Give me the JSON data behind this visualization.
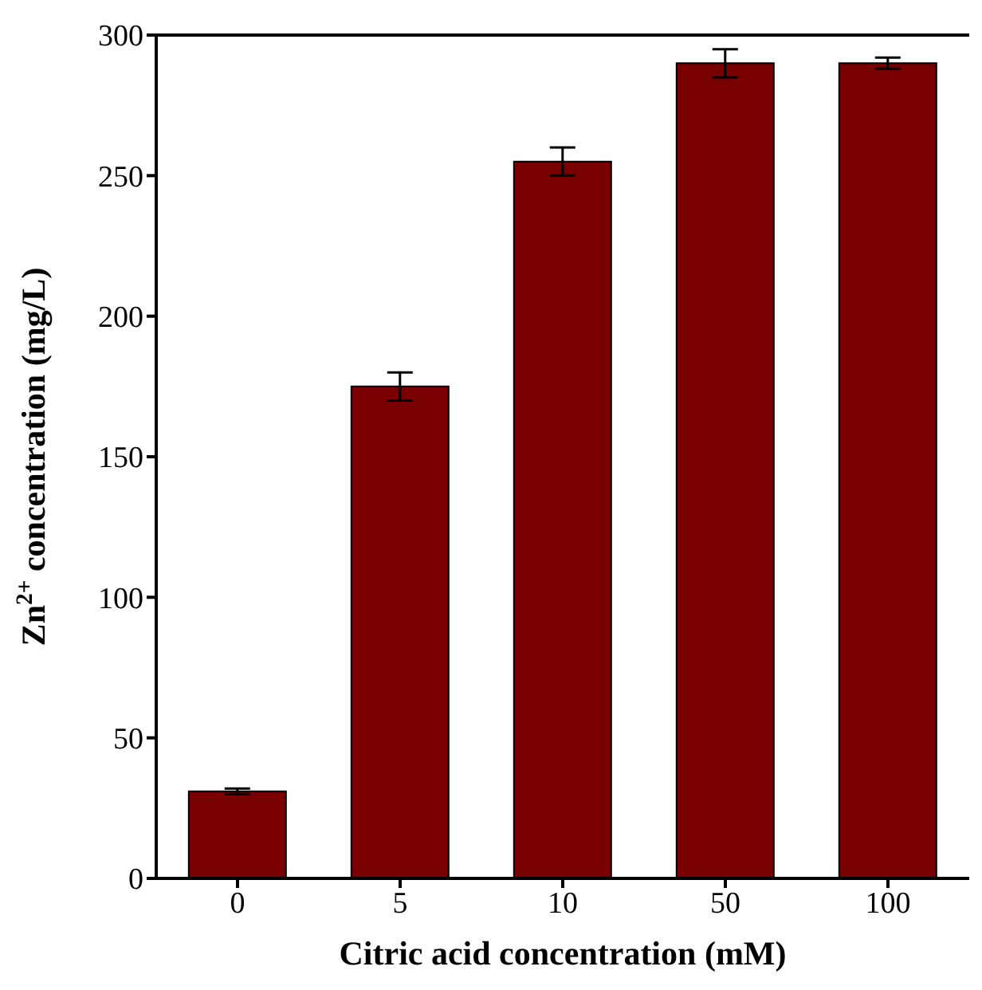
{
  "chart_data": {
    "type": "bar",
    "xlabel": "Citric acid concentration (mM)",
    "ylabel": "Zn$^{2+}$ concentration (mg/L)",
    "categories": [
      "0",
      "5",
      "10",
      "50",
      "100"
    ],
    "values": [
      31,
      175,
      255,
      290,
      290
    ],
    "errors": [
      1,
      5,
      5,
      5,
      2
    ],
    "color": "#780000",
    "ylim": [
      0,
      300
    ],
    "yticks": [
      0,
      50,
      100,
      150,
      200,
      250,
      300
    ]
  }
}
